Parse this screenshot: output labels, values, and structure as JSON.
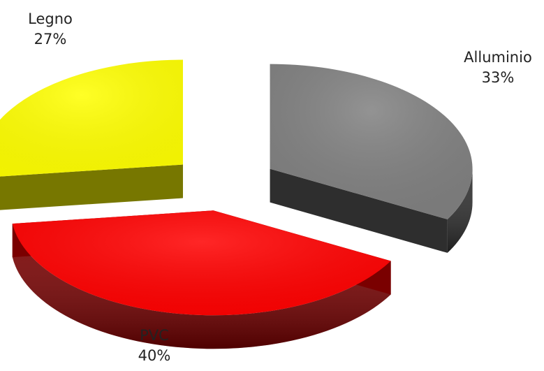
{
  "chart_data": {
    "type": "pie",
    "style": "3d-exploded",
    "slices": [
      {
        "label": "Alluminio",
        "value": 33,
        "value_label": "33%",
        "color": "#808080",
        "side_color": "#2e2e2e"
      },
      {
        "label": "PVC",
        "value": 40,
        "value_label": "40%",
        "color": "#ff0000",
        "side_color": "#7a0000"
      },
      {
        "label": "Legno",
        "value": 27,
        "value_label": "27%",
        "color": "#ffff00",
        "side_color": "#777700"
      }
    ]
  }
}
